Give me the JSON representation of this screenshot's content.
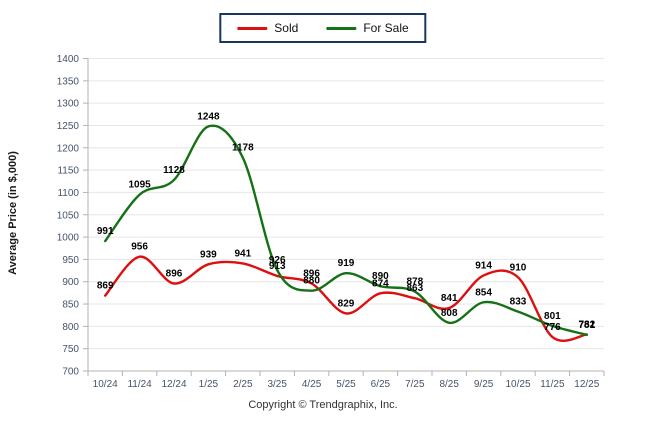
{
  "legend": {
    "items": [
      {
        "label": "Sold",
        "color": "#dd0f0f"
      },
      {
        "label": "For Sale",
        "color": "#157115"
      }
    ],
    "border_color": "#17375e"
  },
  "footer": {
    "copyright": "Copyright © Trendgraphix, Inc."
  },
  "colors": {
    "background": "#ffffff",
    "grid": "#e6e6e6",
    "axis": "#b3b3b3",
    "tick_label": "#44546a",
    "data_label": "#000000",
    "sold": "#dd0f0f",
    "for_sale": "#157115"
  },
  "chart_data": {
    "type": "line",
    "title": "",
    "xlabel": "",
    "ylabel": "Average Price (in $,000)",
    "ylim": [
      700,
      1400
    ],
    "ytick_step": 50,
    "grid": true,
    "smooth": true,
    "legend_position": "top-center",
    "categories": [
      "10/24",
      "11/24",
      "12/24",
      "1/25",
      "2/25",
      "3/25",
      "4/25",
      "5/25",
      "6/25",
      "7/25",
      "8/25",
      "9/25",
      "10/25",
      "11/25",
      "12/25"
    ],
    "series": [
      {
        "name": "Sold",
        "color": "#dd0f0f",
        "values": [
          869,
          956,
          896,
          939,
          941,
          913,
          896,
          829,
          874,
          863,
          841,
          914,
          910,
          776,
          782
        ]
      },
      {
        "name": "For Sale",
        "color": "#157115",
        "values": [
          991,
          1095,
          1128,
          1248,
          1178,
          926,
          880,
          919,
          890,
          878,
          808,
          854,
          833,
          801,
          781
        ]
      }
    ]
  }
}
